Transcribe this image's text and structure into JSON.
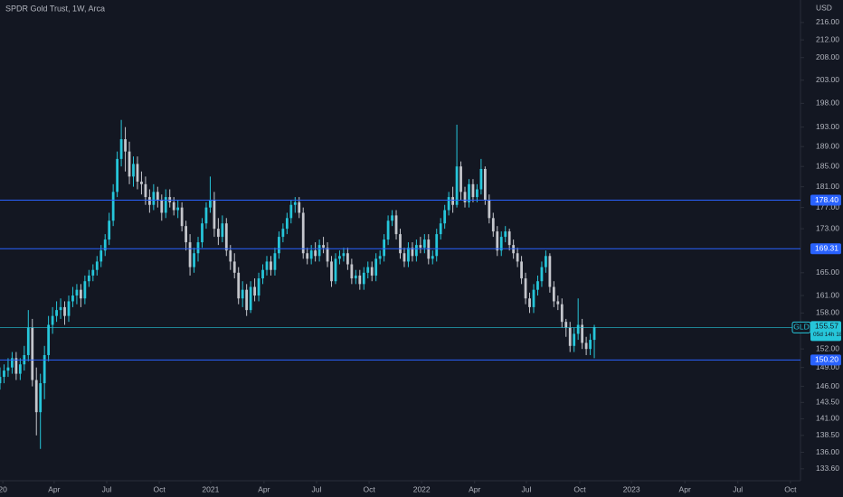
{
  "chart_data": {
    "type": "candlestick",
    "title": "SPDR Gold Trust, 1W, Arca",
    "currency": "USD",
    "log_scale": true,
    "grid": false,
    "up_color": "#26c6da",
    "down_color": "#c4c6cc",
    "xlim": [
      0,
      198
    ],
    "xticks": [
      {
        "value": 0.7,
        "label": "20"
      },
      {
        "value": 13.4,
        "label": "Apr"
      },
      {
        "value": 26.4,
        "label": "Jul"
      },
      {
        "value": 39.4,
        "label": "Oct"
      },
      {
        "value": 52.1,
        "label": "2021"
      },
      {
        "value": 65.3,
        "label": "Apr"
      },
      {
        "value": 78.3,
        "label": "Jul"
      },
      {
        "value": 91.3,
        "label": "Oct"
      },
      {
        "value": 104.3,
        "label": "2022"
      },
      {
        "value": 117.4,
        "label": "Apr"
      },
      {
        "value": 130.2,
        "label": "Jul"
      },
      {
        "value": 143.4,
        "label": "Oct"
      },
      {
        "value": 156.2,
        "label": "2023"
      },
      {
        "value": 169.4,
        "label": "Apr"
      },
      {
        "value": 182.5,
        "label": "Jul"
      },
      {
        "value": 195.5,
        "label": "Oct"
      }
    ],
    "ylim": [
      131.9,
      221.3
    ],
    "yticks": [
      {
        "value": 216,
        "label": "216.00"
      },
      {
        "value": 212,
        "label": "212.00"
      },
      {
        "value": 208,
        "label": "208.00"
      },
      {
        "value": 203,
        "label": "203.00"
      },
      {
        "value": 198,
        "label": "198.00"
      },
      {
        "value": 193,
        "label": "193.00"
      },
      {
        "value": 189,
        "label": "189.00"
      },
      {
        "value": 185,
        "label": "185.00"
      },
      {
        "value": 181,
        "label": "181.00"
      },
      {
        "value": 177,
        "label": "177.00"
      },
      {
        "value": 173,
        "label": "173.00"
      },
      {
        "value": 165,
        "label": "165.00"
      },
      {
        "value": 161,
        "label": "161.00"
      },
      {
        "value": 158,
        "label": "158.00"
      },
      {
        "value": 152,
        "label": "152.00"
      },
      {
        "value": 149,
        "label": "149.00"
      },
      {
        "value": 146,
        "label": "146.00"
      },
      {
        "value": 143.5,
        "label": "143.50"
      },
      {
        "value": 141,
        "label": "141.00"
      },
      {
        "value": 138.5,
        "label": "138.50"
      },
      {
        "value": 136,
        "label": "136.00"
      },
      {
        "value": 133.6,
        "label": "133.60"
      }
    ],
    "levels": [
      {
        "value": 178.4,
        "label": "178.40"
      },
      169.31,
      {
        "value": 150.2,
        "label": "150.20"
      }
    ],
    "level_color": "#2962ff",
    "last": {
      "symbol": "GLD",
      "price": 155.57,
      "countdown": "05d 14h 18"
    },
    "candles": [
      [
        146.5,
        149,
        145.5,
        147.5
      ],
      [
        147.5,
        149.5,
        146.5,
        148.5
      ],
      [
        148.5,
        150.5,
        147.5,
        149
      ],
      [
        149,
        151.5,
        148,
        150.5
      ],
      [
        150.5,
        151.5,
        147,
        148
      ],
      [
        148,
        150.5,
        147,
        149.5
      ],
      [
        149.5,
        152.5,
        148.5,
        151
      ],
      [
        151,
        158.5,
        150,
        155.5
      ],
      [
        155.5,
        157,
        146,
        147
      ],
      [
        147,
        149,
        138.5,
        142
      ],
      [
        142,
        148,
        136.5,
        146.5
      ],
      [
        146.5,
        152.5,
        144,
        151
      ],
      [
        151,
        157.5,
        150,
        156
      ],
      [
        156,
        159,
        154.5,
        157.5
      ],
      [
        157.5,
        160,
        156.5,
        158.5
      ],
      [
        158.5,
        160.5,
        157,
        159
      ],
      [
        159,
        160,
        156,
        157.5
      ],
      [
        157.5,
        161,
        156.5,
        160
      ],
      [
        160,
        162.5,
        159,
        161
      ],
      [
        161,
        163,
        159.5,
        162
      ],
      [
        162,
        163,
        159,
        160.5
      ],
      [
        160.5,
        164.5,
        159.5,
        163.5
      ],
      [
        163.5,
        165.5,
        162.5,
        164.5
      ],
      [
        164.5,
        166.5,
        163.5,
        165.5
      ],
      [
        165.5,
        168,
        164.5,
        167
      ],
      [
        167,
        170,
        166,
        169
      ],
      [
        169,
        172,
        168,
        171
      ],
      [
        171,
        176,
        170,
        174.5
      ],
      [
        174.5,
        181.5,
        173.5,
        180
      ],
      [
        180,
        188,
        179,
        186.5
      ],
      [
        186.5,
        194.5,
        185,
        190.5
      ],
      [
        190.5,
        193,
        184,
        188
      ],
      [
        188,
        190,
        181.5,
        183
      ],
      [
        183,
        187,
        181,
        185.5
      ],
      [
        185.5,
        187,
        180.5,
        182
      ],
      [
        182,
        184,
        179.5,
        181.5
      ],
      [
        181.5,
        183,
        177.5,
        179
      ],
      [
        179,
        180.5,
        176,
        177.5
      ],
      [
        177.5,
        181.5,
        176.5,
        180
      ],
      [
        180,
        181,
        177,
        178.5
      ],
      [
        178.5,
        179.5,
        174.5,
        176
      ],
      [
        176,
        180.5,
        175,
        179
      ],
      [
        179,
        180.5,
        177,
        178
      ],
      [
        178,
        179,
        175.5,
        176.5
      ],
      [
        176.5,
        178.5,
        175,
        177
      ],
      [
        177,
        178,
        172.5,
        173.5
      ],
      [
        173.5,
        174.5,
        169,
        170.5
      ],
      [
        170.5,
        172,
        164.5,
        166
      ],
      [
        166,
        169.5,
        165,
        168.5
      ],
      [
        168.5,
        171.5,
        167,
        170.5
      ],
      [
        170.5,
        175,
        169.5,
        174
      ],
      [
        174,
        178,
        173,
        177
      ],
      [
        177,
        183,
        176,
        178.5
      ],
      [
        178.5,
        180,
        171.5,
        173
      ],
      [
        173,
        175,
        170,
        171.5
      ],
      [
        171.5,
        175.5,
        170.5,
        174
      ],
      [
        174,
        175,
        168,
        169
      ],
      [
        169,
        170,
        165.5,
        167
      ],
      [
        167,
        168.5,
        164,
        165
      ],
      [
        165,
        166,
        159.5,
        160.5
      ],
      [
        160.5,
        163.5,
        159,
        162
      ],
      [
        162,
        163,
        157.5,
        158.5
      ],
      [
        158.5,
        163.5,
        158,
        162.5
      ],
      [
        162.5,
        164,
        160,
        161
      ],
      [
        161,
        165,
        160,
        164
      ],
      [
        164,
        166.5,
        163,
        165.5
      ],
      [
        165.5,
        168,
        164.5,
        167
      ],
      [
        167,
        168,
        164.5,
        165.5
      ],
      [
        165.5,
        169.5,
        164.5,
        168.5
      ],
      [
        168.5,
        172.5,
        167.5,
        171.5
      ],
      [
        171.5,
        174,
        170.5,
        173
      ],
      [
        173,
        176,
        172,
        175
      ],
      [
        175,
        178.5,
        174,
        177.5
      ],
      [
        177.5,
        179,
        176,
        178
      ],
      [
        178,
        179,
        175,
        176
      ],
      [
        176,
        177,
        167.5,
        168.5
      ],
      [
        168.5,
        169.5,
        166.5,
        167.5
      ],
      [
        167.5,
        170,
        166.5,
        169
      ],
      [
        169,
        170.5,
        167,
        168
      ],
      [
        168,
        171,
        167,
        170
      ],
      [
        170,
        171.5,
        168.5,
        169.5
      ],
      [
        169.5,
        170.5,
        166,
        167
      ],
      [
        167,
        168,
        162.5,
        163.5
      ],
      [
        163.5,
        168.5,
        163,
        167.5
      ],
      [
        167.5,
        169,
        166.5,
        168
      ],
      [
        168,
        169.5,
        167,
        168.5
      ],
      [
        168.5,
        169.5,
        165.5,
        166.5
      ],
      [
        166.5,
        167.5,
        163,
        164
      ],
      [
        164,
        165.5,
        163,
        164.5
      ],
      [
        164.5,
        165.5,
        162,
        163
      ],
      [
        163,
        166,
        162,
        165
      ],
      [
        165,
        167,
        164,
        166
      ],
      [
        166,
        167,
        163.5,
        164.5
      ],
      [
        164.5,
        168.5,
        163.5,
        167.5
      ],
      [
        167.5,
        169,
        166.5,
        168
      ],
      [
        168,
        172,
        167,
        171
      ],
      [
        171,
        175.5,
        170,
        174.5
      ],
      [
        174.5,
        176.5,
        173.5,
        175.5
      ],
      [
        175.5,
        176.5,
        171,
        172
      ],
      [
        172,
        173,
        167.5,
        168.5
      ],
      [
        168.5,
        169.5,
        166,
        167
      ],
      [
        167,
        170.5,
        166,
        169.5
      ],
      [
        169.5,
        170.5,
        167,
        168
      ],
      [
        168,
        171,
        167,
        170
      ],
      [
        170,
        171.5,
        168.5,
        169.5
      ],
      [
        169.5,
        172,
        168.5,
        171
      ],
      [
        171,
        172,
        166.5,
        167.5
      ],
      [
        167.5,
        169,
        166.5,
        168
      ],
      [
        168,
        173,
        167,
        172
      ],
      [
        172,
        175,
        171,
        174
      ],
      [
        174,
        177.5,
        173,
        176.5
      ],
      [
        176.5,
        180,
        175.5,
        179
      ],
      [
        179,
        181,
        176,
        177.5
      ],
      [
        177.5,
        193.5,
        177,
        185
      ],
      [
        185,
        186,
        178.5,
        180
      ],
      [
        180,
        181,
        177,
        178
      ],
      [
        178,
        182.5,
        177,
        181.5
      ],
      [
        181.5,
        182.5,
        178,
        179
      ],
      [
        179,
        181.5,
        178,
        180.5
      ],
      [
        180.5,
        186.5,
        179.5,
        184.5
      ],
      [
        184.5,
        185,
        177.5,
        178.5
      ],
      [
        178.5,
        179.5,
        174,
        175
      ],
      [
        175,
        176,
        171.5,
        172.5
      ],
      [
        172.5,
        173.5,
        168,
        169
      ],
      [
        169,
        172.5,
        168,
        171.5
      ],
      [
        171.5,
        173.5,
        170.5,
        172.5
      ],
      [
        172.5,
        173,
        169,
        170
      ],
      [
        170,
        171,
        167.5,
        168.5
      ],
      [
        168.5,
        169.5,
        166,
        167
      ],
      [
        167,
        168,
        163,
        164
      ],
      [
        164,
        165,
        159.5,
        160.5
      ],
      [
        160.5,
        161.5,
        158,
        159
      ],
      [
        159,
        163,
        158,
        162
      ],
      [
        162,
        164.5,
        161,
        163.5
      ],
      [
        163.5,
        167,
        162.5,
        166
      ],
      [
        166,
        169,
        165,
        168
      ],
      [
        168,
        168.5,
        161.5,
        162.5
      ],
      [
        162.5,
        163.5,
        159,
        160
      ],
      [
        160,
        161,
        158.5,
        159.5
      ],
      [
        159.5,
        160.5,
        155.5,
        156.5
      ],
      [
        156.5,
        157,
        154,
        155.5
      ],
      [
        155.5,
        156.5,
        151.5,
        152.5
      ],
      [
        152.5,
        155.5,
        151.5,
        154.5
      ],
      [
        154.5,
        160.5,
        153.5,
        156
      ],
      [
        156,
        157,
        152,
        153
      ],
      [
        153,
        154,
        151,
        152
      ],
      [
        152,
        154.5,
        151,
        153.5
      ],
      [
        153.5,
        156,
        150.5,
        155.57
      ]
    ]
  }
}
